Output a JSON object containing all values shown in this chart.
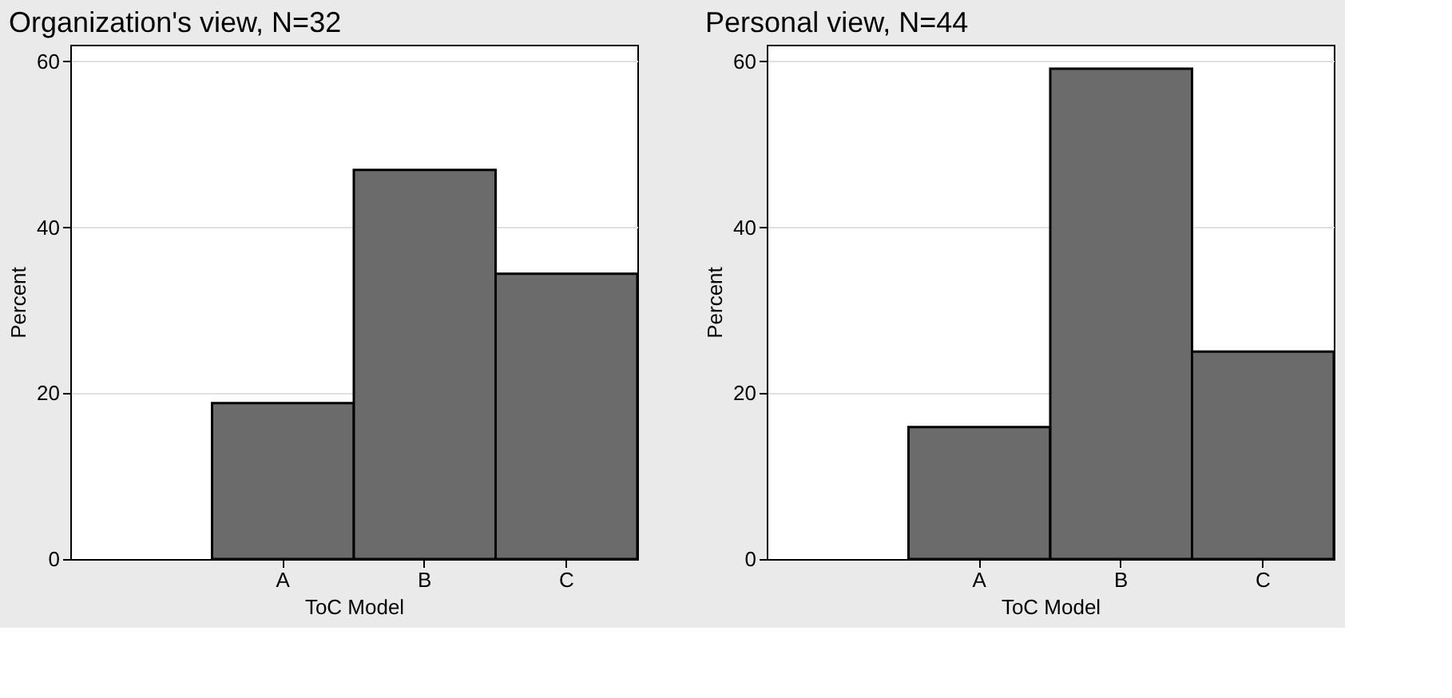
{
  "chart_data": [
    {
      "type": "bar",
      "title": "Organization's view, N=32",
      "xlabel": "ToC Model",
      "ylabel": "Percent",
      "categories": [
        "A",
        "B",
        "C"
      ],
      "values": [
        18.8,
        46.9,
        34.4
      ],
      "color": "#6b6b6b",
      "ylim": [
        0,
        62
      ],
      "yticks": [
        0,
        20,
        40,
        60
      ],
      "grid": "y",
      "legend": false
    },
    {
      "type": "bar",
      "title": "Personal view, N=44",
      "xlabel": "ToC Model",
      "ylabel": "Percent",
      "categories": [
        "A",
        "B",
        "C"
      ],
      "values": [
        15.9,
        59.1,
        25.0
      ],
      "color": "#6b6b6b",
      "ylim": [
        0,
        62
      ],
      "yticks": [
        0,
        20,
        40,
        60
      ],
      "grid": "y",
      "legend": false
    }
  ]
}
